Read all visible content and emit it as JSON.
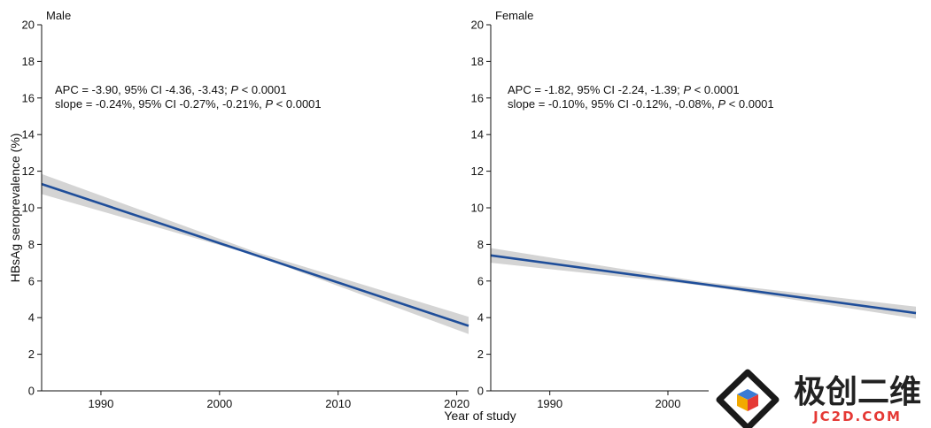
{
  "figure": {
    "ylabel": "HBsAg seroprevalence (%)",
    "xlabel": "Year of study"
  },
  "chart_data": [
    {
      "type": "line",
      "title": "Male",
      "xlim": [
        1985,
        2021
      ],
      "ylim": [
        0,
        20
      ],
      "xticks": [
        1990,
        2000,
        2010,
        2020
      ],
      "yticks": [
        0,
        2,
        4,
        6,
        8,
        10,
        12,
        14,
        16,
        18,
        20
      ],
      "series": [
        {
          "x": [
            1985,
            2021
          ],
          "y": [
            11.3,
            3.55
          ]
        }
      ],
      "ci_band": {
        "x": [
          1985,
          2003,
          2021
        ],
        "lower": [
          10.75,
          7.4,
          3.1
        ],
        "upper": [
          11.85,
          7.6,
          4.05
        ]
      },
      "annotations": {
        "apc": "APC = -3.90, 95% CI -4.36, -3.43; ",
        "apc_p": "P",
        "apc_p_rest": " < 0.0001",
        "slope": "slope = -0.24%, 95% CI -0.27%, -0.21%, ",
        "slope_p": "P",
        "slope_p_rest": " < 0.0001"
      },
      "colors": {
        "line": "#1f4e9a",
        "band": "#d4d4d4"
      }
    },
    {
      "type": "line",
      "title": "Female",
      "xlim": [
        1985,
        2021
      ],
      "ylim": [
        0,
        20
      ],
      "xticks": [
        1990,
        2000
      ],
      "yticks": [
        0,
        2,
        4,
        6,
        8,
        10,
        12,
        14,
        16,
        18,
        20
      ],
      "series": [
        {
          "x": [
            1985,
            2021
          ],
          "y": [
            7.4,
            4.25
          ]
        }
      ],
      "ci_band": {
        "x": [
          1985,
          2003,
          2021
        ],
        "lower": [
          7.0,
          5.75,
          3.95
        ],
        "upper": [
          7.8,
          5.95,
          4.6
        ]
      },
      "annotations": {
        "apc": "APC = -1.82, 95% CI -2.24, -1.39; ",
        "apc_p": "P",
        "apc_p_rest": " < 0.0001",
        "slope": "slope = -0.10%, 95% CI -0.12%, -0.08%, ",
        "slope_p": "P",
        "slope_p_rest": " < 0.0001"
      },
      "colors": {
        "line": "#1f4e9a",
        "band": "#d4d4d4"
      }
    }
  ],
  "watermark": {
    "cn_text": "极创二维",
    "en_text": "JC2D.COM",
    "colors": {
      "top": "#3a7bd5",
      "left": "#f2a900",
      "right": "#e53935",
      "cn": "#222222",
      "en": "#e53935"
    }
  }
}
